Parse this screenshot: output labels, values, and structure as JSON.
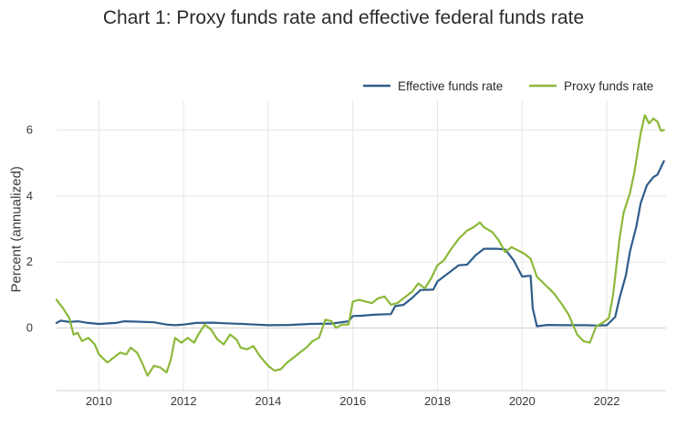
{
  "chart_data": {
    "type": "line",
    "title": "Chart 1: Proxy funds rate and effective federal funds rate",
    "ylabel": "Percent (annualized)",
    "xlabel": "",
    "xlim": [
      2009.0,
      2023.4
    ],
    "ylim": [
      -1.9,
      6.9
    ],
    "x_ticks": [
      2010,
      2012,
      2014,
      2016,
      2018,
      2020,
      2022
    ],
    "y_ticks": [
      0,
      2,
      4,
      6
    ],
    "grid": true,
    "legend_position": "top-right",
    "colors": {
      "effective": "#2e5d8a",
      "proxy": "#8cb83a"
    },
    "series": [
      {
        "name": "Effective funds rate",
        "color": "#2e5d8a",
        "points": [
          [
            2009.0,
            0.15
          ],
          [
            2009.1,
            0.22
          ],
          [
            2009.3,
            0.18
          ],
          [
            2009.5,
            0.2
          ],
          [
            2009.7,
            0.16
          ],
          [
            2010.0,
            0.12
          ],
          [
            2010.4,
            0.15
          ],
          [
            2010.6,
            0.2
          ],
          [
            2010.9,
            0.19
          ],
          [
            2011.3,
            0.17
          ],
          [
            2011.6,
            0.1
          ],
          [
            2011.8,
            0.08
          ],
          [
            2012.0,
            0.1
          ],
          [
            2012.3,
            0.15
          ],
          [
            2012.7,
            0.16
          ],
          [
            2013.0,
            0.14
          ],
          [
            2013.4,
            0.12
          ],
          [
            2013.7,
            0.1
          ],
          [
            2014.0,
            0.08
          ],
          [
            2014.5,
            0.09
          ],
          [
            2015.0,
            0.12
          ],
          [
            2015.5,
            0.13
          ],
          [
            2015.9,
            0.2
          ],
          [
            2016.0,
            0.36
          ],
          [
            2016.2,
            0.37
          ],
          [
            2016.5,
            0.4
          ],
          [
            2016.9,
            0.42
          ],
          [
            2017.0,
            0.66
          ],
          [
            2017.2,
            0.7
          ],
          [
            2017.4,
            0.91
          ],
          [
            2017.6,
            1.15
          ],
          [
            2017.9,
            1.16
          ],
          [
            2018.0,
            1.41
          ],
          [
            2018.3,
            1.7
          ],
          [
            2018.5,
            1.9
          ],
          [
            2018.7,
            1.92
          ],
          [
            2018.9,
            2.2
          ],
          [
            2019.1,
            2.4
          ],
          [
            2019.4,
            2.4
          ],
          [
            2019.6,
            2.38
          ],
          [
            2019.8,
            2.05
          ],
          [
            2020.0,
            1.56
          ],
          [
            2020.2,
            1.58
          ],
          [
            2020.25,
            0.6
          ],
          [
            2020.35,
            0.05
          ],
          [
            2020.6,
            0.09
          ],
          [
            2021.0,
            0.08
          ],
          [
            2021.5,
            0.08
          ],
          [
            2021.8,
            0.07
          ],
          [
            2022.0,
            0.08
          ],
          [
            2022.2,
            0.33
          ],
          [
            2022.3,
            0.9
          ],
          [
            2022.45,
            1.58
          ],
          [
            2022.55,
            2.33
          ],
          [
            2022.7,
            3.08
          ],
          [
            2022.8,
            3.78
          ],
          [
            2022.95,
            4.33
          ],
          [
            2023.1,
            4.57
          ],
          [
            2023.2,
            4.65
          ],
          [
            2023.35,
            5.06
          ]
        ]
      },
      {
        "name": "Proxy funds rate",
        "color": "#8cb83a",
        "points": [
          [
            2009.0,
            0.85
          ],
          [
            2009.15,
            0.6
          ],
          [
            2009.3,
            0.3
          ],
          [
            2009.4,
            -0.2
          ],
          [
            2009.5,
            -0.15
          ],
          [
            2009.6,
            -0.4
          ],
          [
            2009.75,
            -0.3
          ],
          [
            2009.9,
            -0.5
          ],
          [
            2010.0,
            -0.8
          ],
          [
            2010.2,
            -1.05
          ],
          [
            2010.35,
            -0.9
          ],
          [
            2010.5,
            -0.75
          ],
          [
            2010.65,
            -0.8
          ],
          [
            2010.75,
            -0.6
          ],
          [
            2010.9,
            -0.75
          ],
          [
            2011.0,
            -1.0
          ],
          [
            2011.15,
            -1.45
          ],
          [
            2011.3,
            -1.15
          ],
          [
            2011.45,
            -1.2
          ],
          [
            2011.6,
            -1.35
          ],
          [
            2011.7,
            -0.95
          ],
          [
            2011.8,
            -0.3
          ],
          [
            2011.95,
            -0.45
          ],
          [
            2012.1,
            -0.3
          ],
          [
            2012.25,
            -0.45
          ],
          [
            2012.35,
            -0.2
          ],
          [
            2012.5,
            0.1
          ],
          [
            2012.65,
            -0.05
          ],
          [
            2012.8,
            -0.35
          ],
          [
            2012.95,
            -0.5
          ],
          [
            2013.1,
            -0.2
          ],
          [
            2013.25,
            -0.35
          ],
          [
            2013.35,
            -0.6
          ],
          [
            2013.5,
            -0.65
          ],
          [
            2013.65,
            -0.55
          ],
          [
            2013.8,
            -0.85
          ],
          [
            2014.0,
            -1.15
          ],
          [
            2014.15,
            -1.3
          ],
          [
            2014.3,
            -1.25
          ],
          [
            2014.45,
            -1.05
          ],
          [
            2014.6,
            -0.9
          ],
          [
            2014.75,
            -0.75
          ],
          [
            2014.9,
            -0.6
          ],
          [
            2015.05,
            -0.4
          ],
          [
            2015.2,
            -0.3
          ],
          [
            2015.35,
            0.25
          ],
          [
            2015.5,
            0.2
          ],
          [
            2015.6,
            0.0
          ],
          [
            2015.75,
            0.1
          ],
          [
            2015.9,
            0.1
          ],
          [
            2016.0,
            0.8
          ],
          [
            2016.15,
            0.85
          ],
          [
            2016.3,
            0.8
          ],
          [
            2016.45,
            0.75
          ],
          [
            2016.6,
            0.9
          ],
          [
            2016.75,
            0.95
          ],
          [
            2016.9,
            0.7
          ],
          [
            2017.05,
            0.75
          ],
          [
            2017.2,
            0.9
          ],
          [
            2017.4,
            1.1
          ],
          [
            2017.55,
            1.35
          ],
          [
            2017.7,
            1.2
          ],
          [
            2017.85,
            1.5
          ],
          [
            2018.0,
            1.9
          ],
          [
            2018.15,
            2.05
          ],
          [
            2018.3,
            2.35
          ],
          [
            2018.5,
            2.7
          ],
          [
            2018.7,
            2.95
          ],
          [
            2018.85,
            3.05
          ],
          [
            2019.0,
            3.2
          ],
          [
            2019.1,
            3.05
          ],
          [
            2019.3,
            2.9
          ],
          [
            2019.45,
            2.65
          ],
          [
            2019.6,
            2.3
          ],
          [
            2019.75,
            2.45
          ],
          [
            2019.9,
            2.35
          ],
          [
            2020.05,
            2.25
          ],
          [
            2020.2,
            2.1
          ],
          [
            2020.35,
            1.55
          ],
          [
            2020.55,
            1.3
          ],
          [
            2020.75,
            1.05
          ],
          [
            2020.95,
            0.7
          ],
          [
            2021.1,
            0.4
          ],
          [
            2021.3,
            -0.2
          ],
          [
            2021.45,
            -0.4
          ],
          [
            2021.6,
            -0.45
          ],
          [
            2021.75,
            0.05
          ],
          [
            2021.9,
            0.15
          ],
          [
            2022.05,
            0.3
          ],
          [
            2022.15,
            1.0
          ],
          [
            2022.3,
            2.7
          ],
          [
            2022.4,
            3.5
          ],
          [
            2022.55,
            4.1
          ],
          [
            2022.65,
            4.7
          ],
          [
            2022.8,
            5.9
          ],
          [
            2022.9,
            6.45
          ],
          [
            2023.0,
            6.2
          ],
          [
            2023.1,
            6.35
          ],
          [
            2023.2,
            6.25
          ],
          [
            2023.28,
            5.98
          ],
          [
            2023.35,
            6.0
          ]
        ]
      }
    ]
  }
}
